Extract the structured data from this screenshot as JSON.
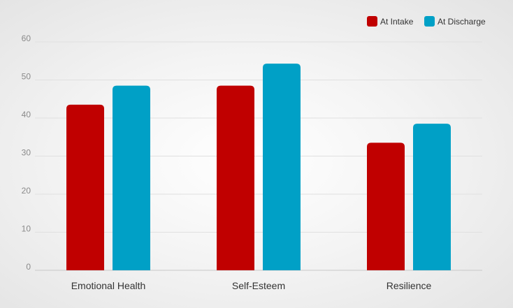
{
  "chart_data": {
    "type": "bar",
    "categories": [
      "Emotional Health",
      "Self-Esteem",
      "Resilience"
    ],
    "series": [
      {
        "name": "At Intake",
        "color": "#c00000",
        "values": [
          43.5,
          48.5,
          33.5
        ]
      },
      {
        "name": "At Discharge",
        "color": "#00a0c6",
        "values": [
          48.5,
          54.3,
          38.5
        ]
      }
    ],
    "yticks": [
      0,
      10,
      20,
      30,
      40,
      50,
      60
    ],
    "ylim": [
      0,
      60
    ],
    "grid": true,
    "legend_position": "top-right"
  }
}
